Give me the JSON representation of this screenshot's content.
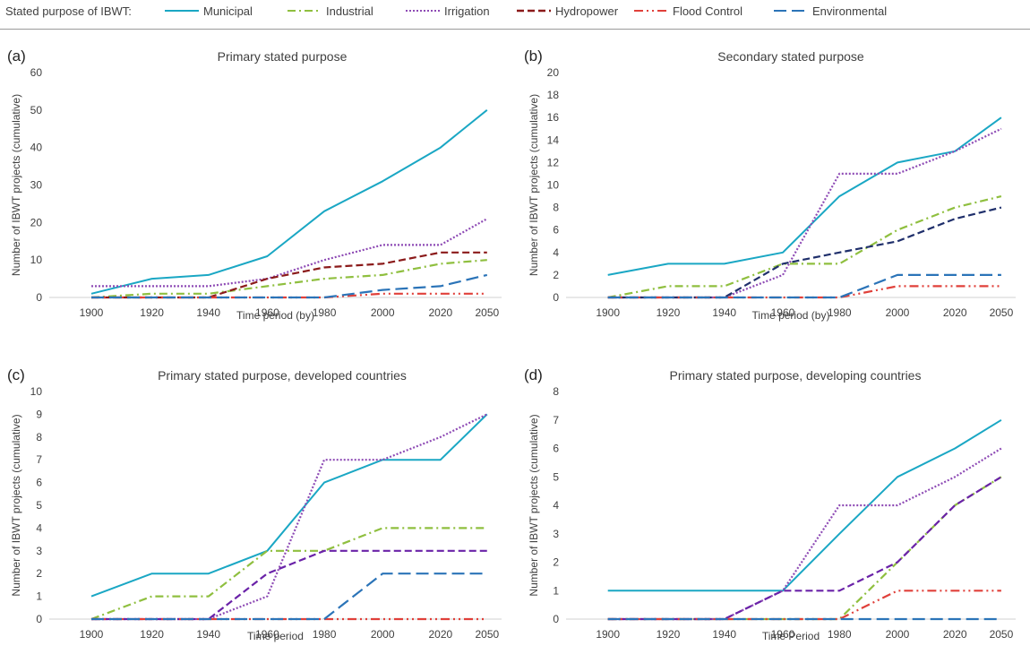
{
  "legend": {
    "title": "Stated purpose of IBWT:",
    "items": [
      {
        "label": "Municipal",
        "color": "#1aa7c4",
        "dash": "",
        "width": 2
      },
      {
        "label": "Industrial",
        "color": "#8fbf3f",
        "dash": "9 4 2 4",
        "width": 2
      },
      {
        "label": "Irrigation",
        "color": "#8e4bb5",
        "dash": "2 2",
        "width": 2
      },
      {
        "label": "Hydropower",
        "color": "#8b1a1a",
        "dash": "8 4",
        "width": 2.4
      },
      {
        "label": "Flood Control",
        "color": "#e0403a",
        "dash": "10 4 2 4 2 4",
        "width": 2
      },
      {
        "label": "Environmental",
        "color": "#2b74b8",
        "dash": "14 6",
        "width": 2
      }
    ]
  },
  "chart_data": [
    {
      "type": "line",
      "panel": "(a)",
      "title": "Primary stated purpose",
      "xlabel": "Time period (by)",
      "ylabel": "Number of IBWT projects (cumulative)",
      "categories": [
        "1900",
        "1920",
        "1940",
        "1960",
        "1980",
        "2000",
        "2020",
        "2050"
      ],
      "ylim": [
        0,
        60
      ],
      "ytick_step": 10,
      "series": [
        {
          "name": "Municipal",
          "color": "#1aa7c4",
          "dash": "",
          "values": [
            1,
            5,
            6,
            11,
            23,
            31,
            40,
            50
          ]
        },
        {
          "name": "Industrial",
          "color": "#8fbf3f",
          "dash": "9 4 2 4",
          "values": [
            0,
            1,
            1,
            3,
            5,
            6,
            9,
            10
          ]
        },
        {
          "name": "Irrigation",
          "color": "#8e4bb5",
          "dash": "2 2",
          "values": [
            3,
            3,
            3,
            5,
            10,
            14,
            14,
            21
          ]
        },
        {
          "name": "Hydropower",
          "color": "#8b1a1a",
          "dash": "8 4",
          "values": [
            0,
            0,
            0,
            5,
            8,
            9,
            12,
            12
          ]
        },
        {
          "name": "Flood Control",
          "color": "#e0403a",
          "dash": "10 4 2 4 2 4",
          "values": [
            0,
            0,
            0,
            0,
            0,
            1,
            1,
            1
          ]
        },
        {
          "name": "Environmental",
          "color": "#2b74b8",
          "dash": "14 6",
          "values": [
            0,
            0,
            0,
            0,
            0,
            2,
            3,
            6
          ]
        }
      ]
    },
    {
      "type": "line",
      "panel": "(b)",
      "title": "Secondary stated purpose",
      "xlabel": "Time period (by)",
      "ylabel": "Number of IBWT projects (cumulative)",
      "categories": [
        "1900",
        "1920",
        "1940",
        "1960",
        "1980",
        "2000",
        "2020",
        "2050"
      ],
      "ylim": [
        0,
        20
      ],
      "ytick_step": 2,
      "series": [
        {
          "name": "Municipal",
          "color": "#1aa7c4",
          "dash": "",
          "values": [
            2,
            3,
            3,
            4,
            9,
            12,
            13,
            16
          ]
        },
        {
          "name": "Industrial",
          "color": "#8fbf3f",
          "dash": "9 4 2 4",
          "values": [
            0,
            1,
            1,
            3,
            3,
            6,
            8,
            9
          ]
        },
        {
          "name": "Irrigation",
          "color": "#8e4bb5",
          "dash": "2 2",
          "values": [
            0,
            0,
            0,
            2,
            11,
            11,
            13,
            15
          ]
        },
        {
          "name": "Hydropower",
          "color": "#1f2f6b",
          "dash": "8 4",
          "values": [
            0,
            0,
            0,
            3,
            4,
            5,
            7,
            8
          ]
        },
        {
          "name": "Flood Control",
          "color": "#e0403a",
          "dash": "10 4 2 4 2 4",
          "values": [
            0,
            0,
            0,
            0,
            0,
            1,
            1,
            1
          ]
        },
        {
          "name": "Environmental",
          "color": "#2b74b8",
          "dash": "14 6",
          "values": [
            0,
            0,
            0,
            0,
            0,
            2,
            2,
            2
          ]
        }
      ]
    },
    {
      "type": "line",
      "panel": "(c)",
      "title": "Primary stated purpose, developed countries",
      "xlabel": "Time period",
      "ylabel": "Number of IBWT projects (cumulative)",
      "categories": [
        "1900",
        "1920",
        "1940",
        "1960",
        "1980",
        "2000",
        "2020",
        "2050"
      ],
      "ylim": [
        0,
        10
      ],
      "ytick_step": 1,
      "series": [
        {
          "name": "Municipal",
          "color": "#1aa7c4",
          "dash": "",
          "values": [
            1,
            2,
            2,
            3,
            6,
            7,
            7,
            9
          ]
        },
        {
          "name": "Industrial",
          "color": "#8fbf3f",
          "dash": "9 4 2 4",
          "values": [
            0,
            1,
            1,
            3,
            3,
            4,
            4,
            4
          ]
        },
        {
          "name": "Irrigation",
          "color": "#8e4bb5",
          "dash": "2 2",
          "values": [
            0,
            0,
            0,
            1,
            7,
            7,
            8,
            9
          ]
        },
        {
          "name": "Hydropower",
          "color": "#6a22a8",
          "dash": "8 4",
          "values": [
            0,
            0,
            0,
            2,
            3,
            3,
            3,
            3
          ]
        },
        {
          "name": "Flood Control",
          "color": "#e0403a",
          "dash": "10 4 2 4 2 4",
          "values": [
            0,
            0,
            0,
            0,
            0,
            0,
            0,
            0
          ]
        },
        {
          "name": "Environmental",
          "color": "#2b74b8",
          "dash": "14 6",
          "values": [
            0,
            0,
            0,
            0,
            0,
            2,
            2,
            2
          ]
        }
      ]
    },
    {
      "type": "line",
      "panel": "(d)",
      "title": "Primary stated purpose, developing countries",
      "xlabel": "Time Period",
      "ylabel": "Number of IBWT projects (cumulative)",
      "categories": [
        "1900",
        "1920",
        "1940",
        "1960",
        "1980",
        "2000",
        "2020",
        "2050"
      ],
      "ylim": [
        0,
        8
      ],
      "ytick_step": 1,
      "series": [
        {
          "name": "Municipal",
          "color": "#1aa7c4",
          "dash": "",
          "values": [
            1,
            1,
            1,
            1,
            3,
            5,
            6,
            7
          ]
        },
        {
          "name": "Industrial",
          "color": "#8fbf3f",
          "dash": "9 4 2 4",
          "values": [
            0,
            0,
            0,
            0,
            0,
            2,
            4,
            5
          ]
        },
        {
          "name": "Irrigation",
          "color": "#8e4bb5",
          "dash": "2 2",
          "values": [
            0,
            0,
            0,
            1,
            4,
            4,
            5,
            6
          ]
        },
        {
          "name": "Hydropower",
          "color": "#6a22a8",
          "dash": "8 4",
          "values": [
            0,
            0,
            0,
            1,
            1,
            2,
            4,
            5
          ]
        },
        {
          "name": "Flood Control",
          "color": "#e0403a",
          "dash": "10 4 2 4 2 4",
          "values": [
            0,
            0,
            0,
            0,
            0,
            1,
            1,
            1
          ]
        },
        {
          "name": "Environmental",
          "color": "#2b74b8",
          "dash": "14 6",
          "values": [
            0,
            0,
            0,
            0,
            0,
            0,
            0,
            0
          ]
        }
      ]
    }
  ]
}
